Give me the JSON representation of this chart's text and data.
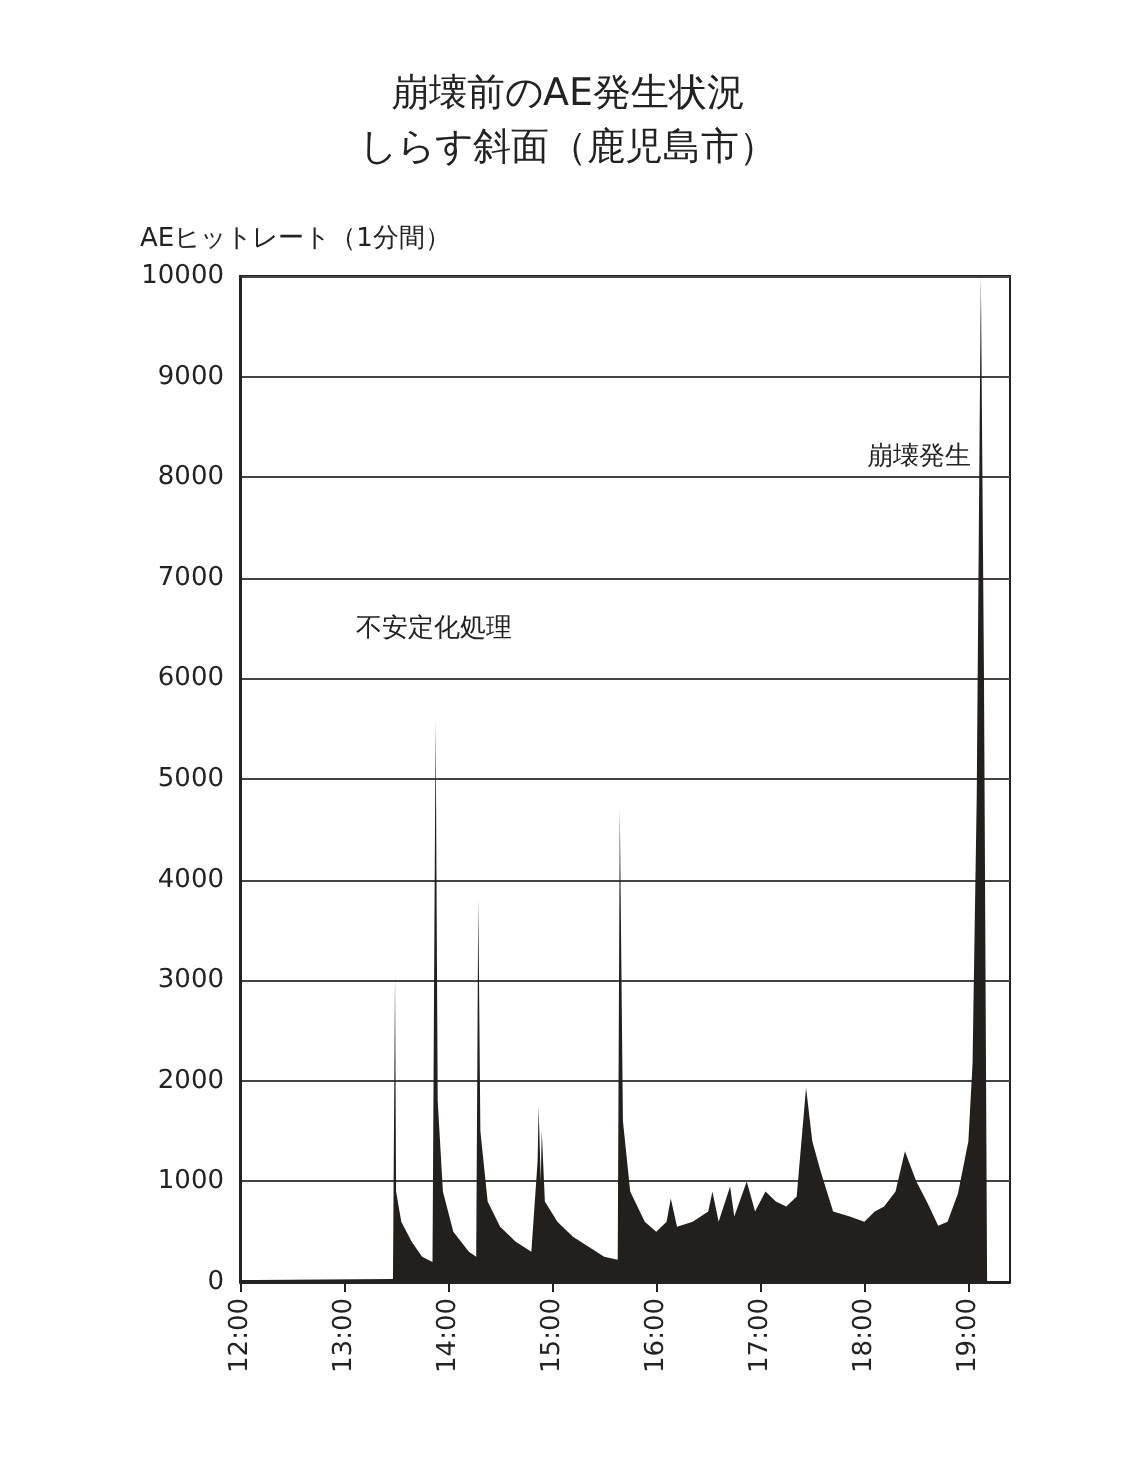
{
  "chart_data": {
    "type": "area",
    "title": "崩壊前のAE発生状況",
    "subtitle": "しらす斜面（鹿児島市）",
    "ylabel": "AEヒットレート（1分間）",
    "color": "#231f1c",
    "grid": "y",
    "xlim": [
      12,
      19.4
    ],
    "ylim": [
      0,
      10000
    ],
    "xticks": [
      {
        "value": 12,
        "label": "12:00"
      },
      {
        "value": 13,
        "label": "13:00"
      },
      {
        "value": 14,
        "label": "14:00"
      },
      {
        "value": 15,
        "label": "15:00"
      },
      {
        "value": 16,
        "label": "16:00"
      },
      {
        "value": 17,
        "label": "17:00"
      },
      {
        "value": 18,
        "label": "18:00"
      },
      {
        "value": 19,
        "label": "19:00"
      }
    ],
    "yticks": [
      0,
      1000,
      2000,
      3000,
      4000,
      5000,
      6000,
      7000,
      8000,
      9000,
      10000
    ],
    "annotations": [
      "不安定化処理",
      {
        "text": "崩壊発生",
        "x": 19.1,
        "y": 8200
      }
    ],
    "x": [
      12.0,
      13.47,
      13.49,
      13.5,
      13.55,
      13.65,
      13.75,
      13.85,
      13.88,
      13.9,
      13.95,
      14.05,
      14.2,
      14.27,
      14.29,
      14.31,
      14.38,
      14.5,
      14.65,
      14.8,
      14.86,
      14.87,
      14.89,
      14.9,
      14.93,
      15.05,
      15.2,
      15.35,
      15.5,
      15.63,
      15.65,
      15.68,
      15.75,
      15.89,
      16.0,
      16.1,
      16.14,
      16.2,
      16.35,
      16.5,
      16.54,
      16.6,
      16.71,
      16.75,
      16.87,
      16.95,
      17.05,
      17.15,
      17.25,
      17.35,
      17.44,
      17.5,
      17.58,
      17.7,
      17.86,
      18.0,
      18.1,
      18.19,
      18.3,
      18.39,
      18.5,
      18.6,
      18.71,
      18.8,
      18.9,
      19.0,
      19.04,
      19.08,
      19.12,
      19.15,
      19.18
    ],
    "values": [
      20,
      30,
      3060,
      900,
      600,
      400,
      250,
      200,
      5590,
      1800,
      900,
      500,
      300,
      250,
      3810,
      1500,
      800,
      550,
      400,
      300,
      1200,
      1740,
      1000,
      1500,
      800,
      600,
      450,
      350,
      250,
      220,
      4700,
      1600,
      900,
      600,
      500,
      600,
      830,
      550,
      600,
      700,
      900,
      600,
      950,
      650,
      1000,
      700,
      900,
      800,
      750,
      850,
      1930,
      1400,
      1100,
      700,
      650,
      600,
      700,
      750,
      900,
      1300,
      1000,
      800,
      560,
      600,
      880,
      1400,
      2170,
      4800,
      10000,
      6000,
      0
    ]
  }
}
